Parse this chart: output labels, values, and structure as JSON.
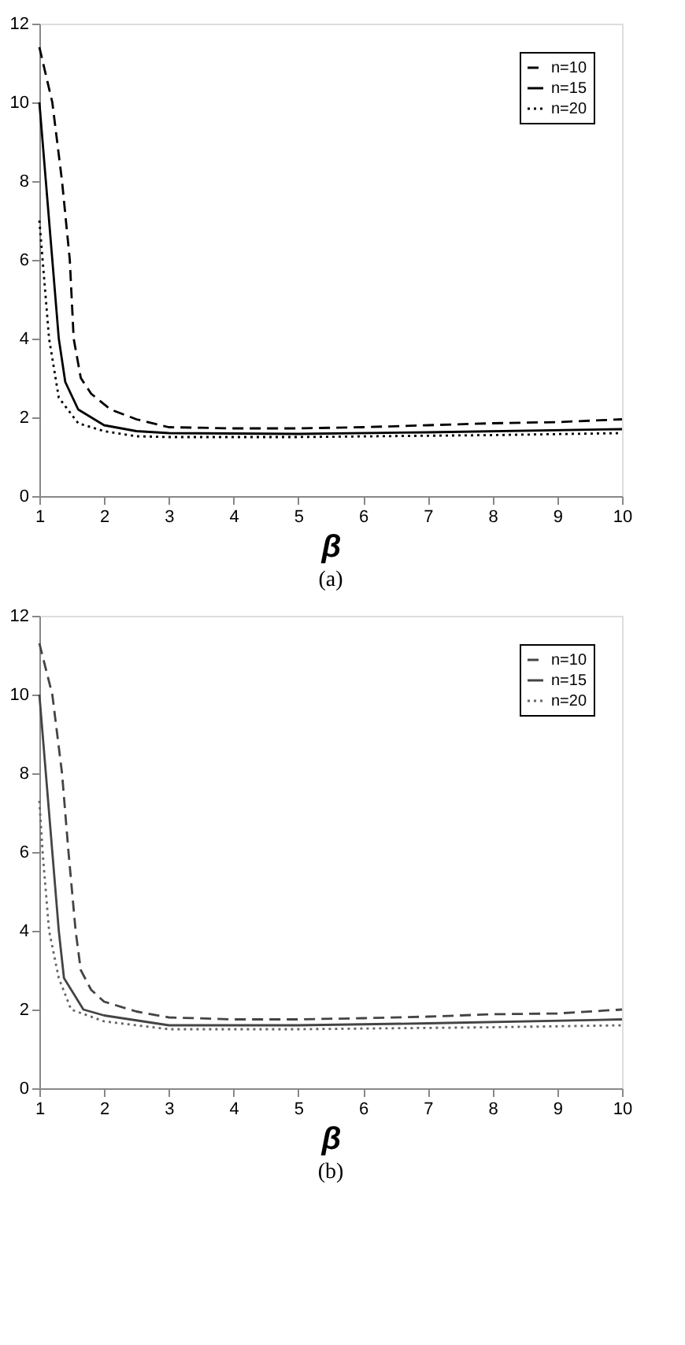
{
  "chart_data": [
    {
      "type": "line",
      "xlabel": "β",
      "annotations": [
        "(a)"
      ],
      "xlim": [
        1,
        10
      ],
      "ylim": [
        0,
        12
      ],
      "xticks": [
        1,
        2,
        3,
        4,
        5,
        6,
        7,
        8,
        9,
        10
      ],
      "yticks": [
        0,
        2,
        4,
        6,
        8,
        10,
        12
      ],
      "grid": false,
      "legend": "top right",
      "marker": "none",
      "series": [
        {
          "name": "n=10",
          "color": "#000000",
          "line_style": "dashed",
          "x": [
            1,
            1.2,
            1.35,
            1.47,
            1.53,
            1.64,
            1.8,
            2.1,
            2.5,
            3,
            4,
            5,
            6,
            7,
            8,
            9,
            10
          ],
          "values": [
            11.4,
            10,
            8,
            6,
            4,
            3,
            2.6,
            2.2,
            1.95,
            1.75,
            1.72,
            1.72,
            1.75,
            1.8,
            1.85,
            1.88,
            1.95
          ]
        },
        {
          "name": "n=15",
          "color": "#000000",
          "line_style": "solid",
          "x": [
            1,
            1.1,
            1.2,
            1.3,
            1.4,
            1.6,
            2,
            2.5,
            3,
            5,
            7,
            10
          ],
          "values": [
            10,
            8,
            6,
            4,
            2.9,
            2.2,
            1.8,
            1.65,
            1.6,
            1.58,
            1.62,
            1.7
          ]
        },
        {
          "name": "n=20",
          "color": "#000000",
          "line_style": "dotted",
          "x": [
            1,
            1.05,
            1.15,
            1.3,
            1.6,
            2,
            2.5,
            3,
            5,
            8,
            10
          ],
          "values": [
            7,
            6,
            4,
            2.5,
            1.85,
            1.65,
            1.52,
            1.5,
            1.5,
            1.55,
            1.6
          ]
        }
      ]
    },
    {
      "type": "line",
      "xlabel": "β",
      "annotations": [
        "(b)"
      ],
      "xlim": [
        1,
        10
      ],
      "ylim": [
        0,
        12
      ],
      "xticks": [
        1,
        2,
        3,
        4,
        5,
        6,
        7,
        8,
        9,
        10
      ],
      "yticks": [
        0,
        2,
        4,
        6,
        8,
        10,
        12
      ],
      "grid": false,
      "legend": "top right",
      "marker": "none",
      "series": [
        {
          "name": "n=10",
          "color": "#444444",
          "line_style": "dashed",
          "x": [
            1,
            1.2,
            1.35,
            1.45,
            1.56,
            1.64,
            1.8,
            2,
            2.5,
            3,
            4,
            5,
            6,
            7,
            8,
            9,
            10
          ],
          "values": [
            11.3,
            10,
            8,
            6,
            4,
            3,
            2.5,
            2.2,
            1.95,
            1.8,
            1.75,
            1.75,
            1.78,
            1.82,
            1.88,
            1.9,
            2
          ]
        },
        {
          "name": "n=15",
          "color": "#444444",
          "line_style": "solid",
          "x": [
            1,
            1.1,
            1.2,
            1.3,
            1.38,
            1.68,
            2,
            3,
            5,
            7,
            10
          ],
          "values": [
            10,
            8,
            6,
            4,
            2.8,
            2,
            1.85,
            1.6,
            1.6,
            1.65,
            1.75
          ]
        },
        {
          "name": "n=20",
          "color": "#666666",
          "line_style": "dotted",
          "x": [
            1,
            1.05,
            1.1,
            1.15,
            1.3,
            1.49,
            2,
            3,
            5,
            8,
            10
          ],
          "values": [
            7.3,
            6,
            5,
            4,
            2.8,
            2,
            1.7,
            1.5,
            1.5,
            1.55,
            1.6
          ]
        }
      ]
    }
  ]
}
